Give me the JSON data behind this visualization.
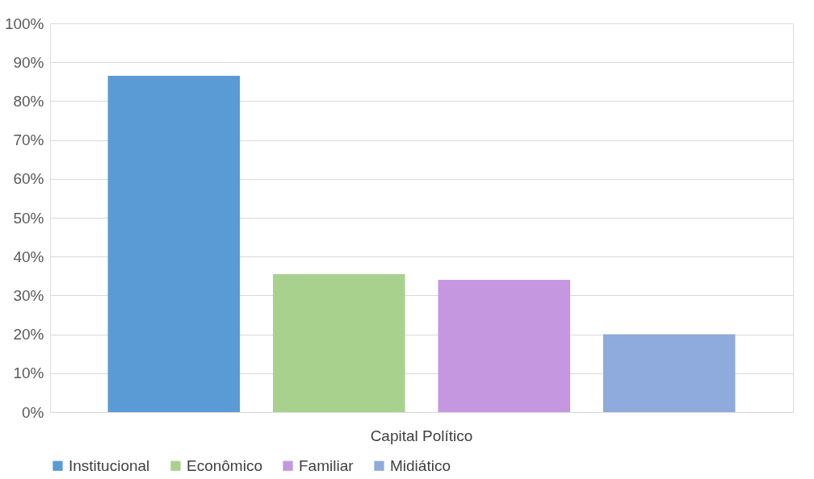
{
  "chart_data": {
    "type": "bar",
    "categories": [
      "Capital Político"
    ],
    "series": [
      {
        "name": "Institucional",
        "color": "#5b9bd5",
        "values": [
          86.5
        ]
      },
      {
        "name": "Econômico",
        "color": "#a9d18e",
        "values": [
          35.5
        ]
      },
      {
        "name": "Familiar",
        "color": "#c497e0",
        "values": [
          34
        ]
      },
      {
        "name": "Midiático",
        "color": "#8faadc",
        "values": [
          20
        ]
      }
    ],
    "ylim": [
      0,
      100
    ],
    "yticks": [
      {
        "value": 0,
        "label": "0%"
      },
      {
        "value": 10,
        "label": "10%"
      },
      {
        "value": 20,
        "label": "20%"
      },
      {
        "value": 30,
        "label": "30%"
      },
      {
        "value": 40,
        "label": "40%"
      },
      {
        "value": 50,
        "label": "50%"
      },
      {
        "value": 60,
        "label": "60%"
      },
      {
        "value": 70,
        "label": "70%"
      },
      {
        "value": 80,
        "label": "80%"
      },
      {
        "value": 90,
        "label": "90%"
      },
      {
        "value": 100,
        "label": "100%"
      }
    ],
    "grid": "y",
    "legend": "bottom"
  }
}
